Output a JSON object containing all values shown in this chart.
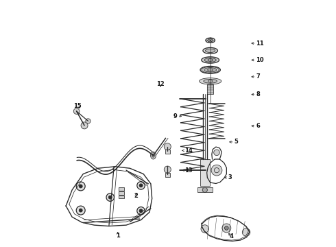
{
  "background_color": "#ffffff",
  "line_color": "#2a2a2a",
  "label_color": "#111111",
  "fig_width": 4.9,
  "fig_height": 3.6,
  "dpi": 100,
  "label_positions": {
    "1": [
      0.295,
      0.068,
      0.295,
      0.045,
      "center"
    ],
    "2": [
      0.37,
      0.225,
      0.37,
      0.205,
      "center"
    ],
    "3": [
      0.72,
      0.28,
      0.745,
      0.28,
      "left"
    ],
    "4": [
      0.74,
      0.06,
      0.758,
      0.042,
      "center"
    ],
    "5": [
      0.74,
      0.425,
      0.77,
      0.425,
      "left"
    ],
    "6": [
      0.83,
      0.49,
      0.858,
      0.49,
      "left"
    ],
    "7": [
      0.83,
      0.69,
      0.858,
      0.69,
      "left"
    ],
    "8": [
      0.83,
      0.618,
      0.858,
      0.618,
      "left"
    ],
    "9": [
      0.565,
      0.53,
      0.538,
      0.53,
      "right"
    ],
    "10": [
      0.83,
      0.758,
      0.858,
      0.758,
      "left"
    ],
    "11": [
      0.83,
      0.826,
      0.858,
      0.826,
      "left"
    ],
    "12": [
      0.47,
      0.64,
      0.47,
      0.66,
      "center"
    ],
    "13": [
      0.548,
      0.31,
      0.568,
      0.31,
      "left"
    ],
    "14": [
      0.548,
      0.39,
      0.568,
      0.39,
      "left"
    ],
    "15": [
      0.148,
      0.555,
      0.132,
      0.572,
      "center"
    ]
  }
}
